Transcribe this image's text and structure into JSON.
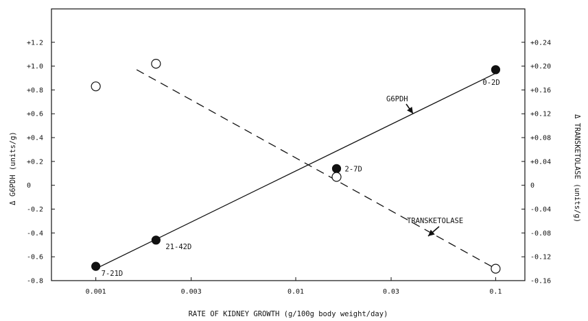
{
  "chart_data": {
    "type": "scatter",
    "title": "",
    "x_axis": {
      "label": "RATE OF KIDNEY GROWTH  (g/100g body weight/day)",
      "scale": "log",
      "range": [
        0.0006,
        0.14
      ],
      "ticks": [
        0.001,
        0.003,
        0.01,
        0.03,
        0.1
      ],
      "tick_labels": [
        "0.001",
        "0.003",
        "0.01",
        "0.03",
        "0.1"
      ]
    },
    "y_left": {
      "label": "Δ G6PDH (units/g)",
      "range": [
        -0.8,
        1.48
      ],
      "ticks": [
        -0.8,
        -0.6,
        -0.4,
        -0.2,
        0,
        0.2,
        0.4,
        0.6,
        0.8,
        1.0,
        1.2
      ],
      "tick_labels": [
        "-0.8",
        "-0.6",
        "-0.4",
        "-0.2",
        "0",
        "+0.2",
        "+0.4",
        "+0.6",
        "+0.8",
        "+1.0",
        "+1.2"
      ]
    },
    "y_right": {
      "label": "Δ TRANSKETOLASE (units/g)",
      "range": [
        -0.16,
        0.296
      ],
      "ticks": [
        -0.16,
        -0.12,
        -0.08,
        -0.04,
        0,
        0.04,
        0.08,
        0.12,
        0.16,
        0.2,
        0.24
      ],
      "tick_labels": [
        "-0.16",
        "-0.12",
        "-0.08",
        "-0.04",
        "0",
        "+0.04",
        "+0.08",
        "+0.12",
        "+0.16",
        "+0.20",
        "+0.24"
      ]
    },
    "series": [
      {
        "name": "G6PDH",
        "axis": "left",
        "marker": "filled-circle",
        "line": "solid",
        "points": [
          {
            "x": 0.1,
            "y": 0.97,
            "label": "0-2D"
          },
          {
            "x": 0.016,
            "y": 0.14,
            "label": "2-7D"
          },
          {
            "x": 0.002,
            "y": -0.46,
            "label": "21-42D"
          },
          {
            "x": 0.001,
            "y": -0.68,
            "label": "7-21D"
          }
        ],
        "fit_line": {
          "x": [
            0.001,
            0.1
          ],
          "y": [
            -0.7,
            0.94
          ]
        }
      },
      {
        "name": "TRANSKETOLASE",
        "axis": "right",
        "marker": "open-circle",
        "line": "dashed",
        "points": [
          {
            "x": 0.001,
            "y": 0.166
          },
          {
            "x": 0.002,
            "y": 0.204
          },
          {
            "x": 0.016,
            "y": 0.014
          },
          {
            "x": 0.1,
            "y": -0.14
          }
        ],
        "fit_line": {
          "x": [
            0.0016,
            0.1
          ],
          "y": [
            0.194,
            -0.14
          ]
        }
      }
    ],
    "annotations": [
      {
        "text": "G6PDH",
        "target_series": "G6PDH"
      },
      {
        "text": "TRANSKETOLASE",
        "target_series": "TRANSKETOLASE"
      }
    ],
    "grid": false,
    "legend": "none"
  }
}
